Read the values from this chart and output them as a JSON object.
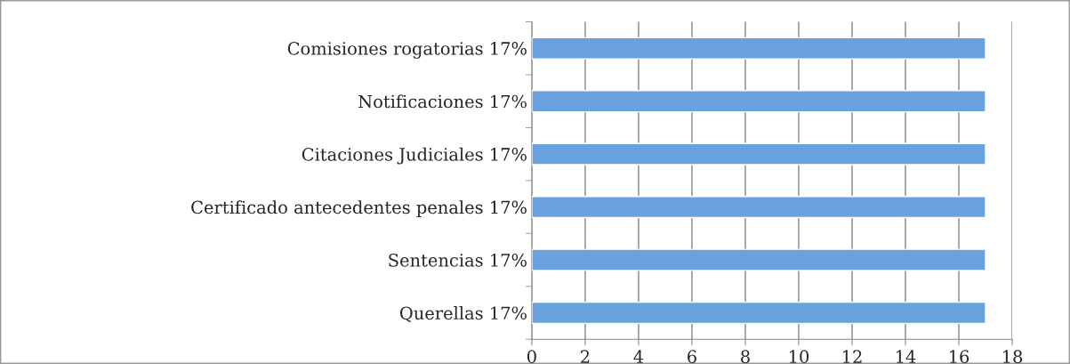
{
  "chart_data": {
    "type": "bar",
    "orientation": "horizontal",
    "categories": [
      "Comisiones rogatorias 17%",
      "Notificaciones 17%",
      "Citaciones Judiciales 17%",
      "Certificado antecedentes penales 17%",
      "Sentencias 17%",
      "Querellas 17%"
    ],
    "values": [
      17,
      17,
      17,
      17,
      17,
      17
    ],
    "color": "#6aa2de",
    "xlim": [
      0,
      18
    ],
    "xticks": [
      0,
      2,
      4,
      6,
      8,
      10,
      12,
      14,
      16,
      18
    ],
    "grid": "x",
    "legend": false
  }
}
